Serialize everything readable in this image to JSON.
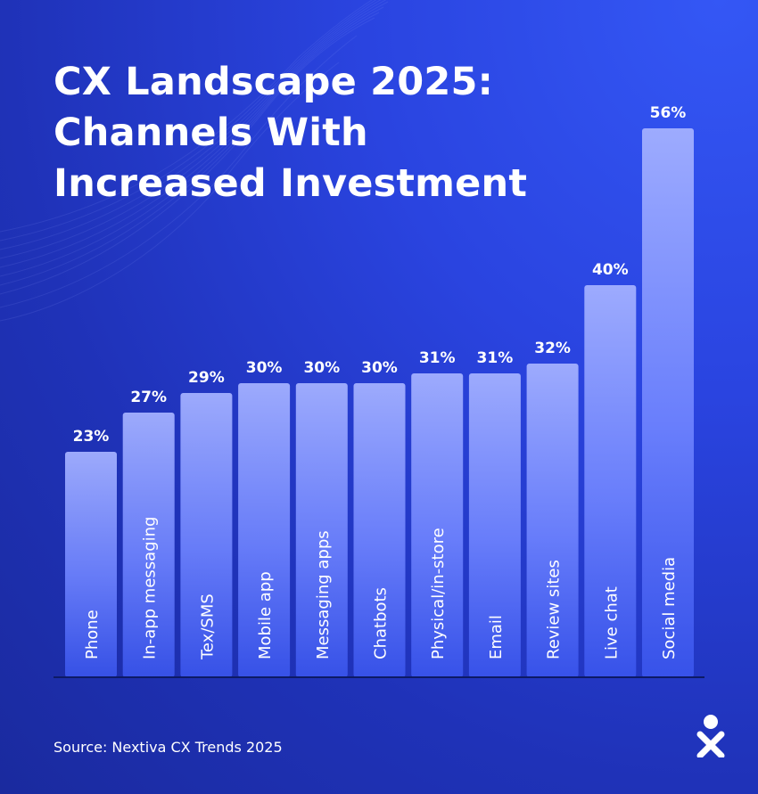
{
  "title_lines": [
    "CX Landscape 2025:",
    "Channels With",
    "Increased Investment"
  ],
  "source": "Source: Nextiva CX Trends 2025",
  "logo_icon": "nextiva-logo-icon",
  "colors": {
    "background": "#2a44e0",
    "bar_top": "#9aa8ff",
    "bar_bottom": "#3d5cf2",
    "text": "#ffffff"
  },
  "chart_data": {
    "type": "bar",
    "categories": [
      "Phone",
      "In-app messaging",
      "Tex/SMS",
      "Mobile app",
      "Messaging apps",
      "Chatbots",
      "Physical/in-store",
      "Email",
      "Review sites",
      "Live chat",
      "Social media"
    ],
    "values": [
      23,
      27,
      29,
      30,
      30,
      30,
      31,
      31,
      32,
      40,
      56
    ],
    "data_labels": [
      "23%",
      "27%",
      "29%",
      "30%",
      "30%",
      "30%",
      "31%",
      "31%",
      "32%",
      "40%",
      "56%"
    ],
    "unit": "%",
    "ylim": [
      0,
      56
    ],
    "grid": false,
    "legend": "none",
    "title": "CX Landscape 2025: Channels With Increased Investment"
  }
}
